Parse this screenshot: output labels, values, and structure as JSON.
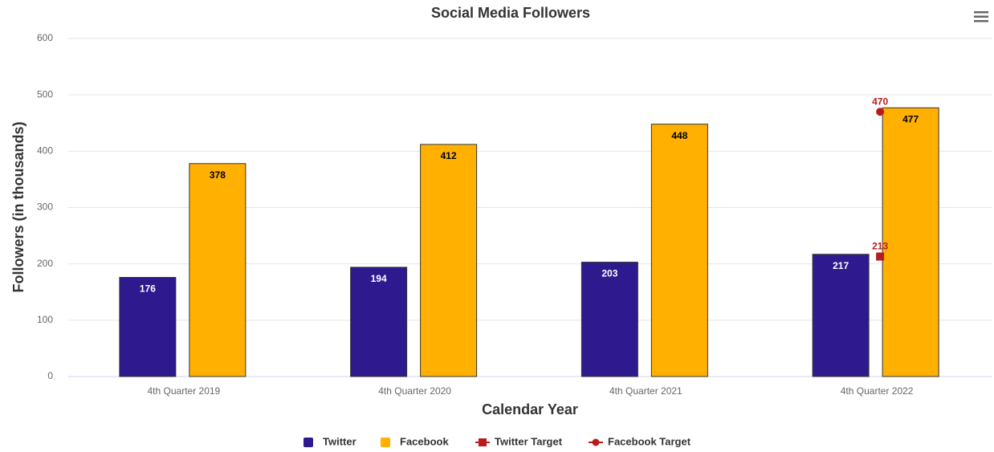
{
  "chart_data": {
    "type": "bar",
    "title": "Social Media Followers",
    "x_label": "Calendar Year",
    "y_label": "Followers (in thousands)",
    "categories": [
      "4th Quarter 2019",
      "4th Quarter 2020",
      "4th Quarter 2021",
      "4th Quarter 2022"
    ],
    "series": [
      {
        "name": "Twitter",
        "type": "bar",
        "color": "#2e1a8e",
        "label_color": "#ffffff",
        "values": [
          176,
          194,
          203,
          217
        ]
      },
      {
        "name": "Facebook",
        "type": "bar",
        "color": "#ffb000",
        "label_color": "#000000",
        "values": [
          378,
          412,
          448,
          477
        ]
      },
      {
        "name": "Twitter Target",
        "type": "line",
        "marker": "square",
        "color": "#b71c1c",
        "label_color": "#b71c1c",
        "values": [
          null,
          null,
          null,
          213
        ]
      },
      {
        "name": "Facebook Target",
        "type": "line",
        "marker": "circle",
        "color": "#b71c1c",
        "label_color": "#b71c1c",
        "values": [
          null,
          null,
          null,
          470
        ]
      }
    ],
    "ylim": [
      0,
      600
    ],
    "yticks": [
      0,
      100,
      200,
      300,
      400,
      500,
      600
    ],
    "grid": true,
    "legend": "bottom"
  }
}
